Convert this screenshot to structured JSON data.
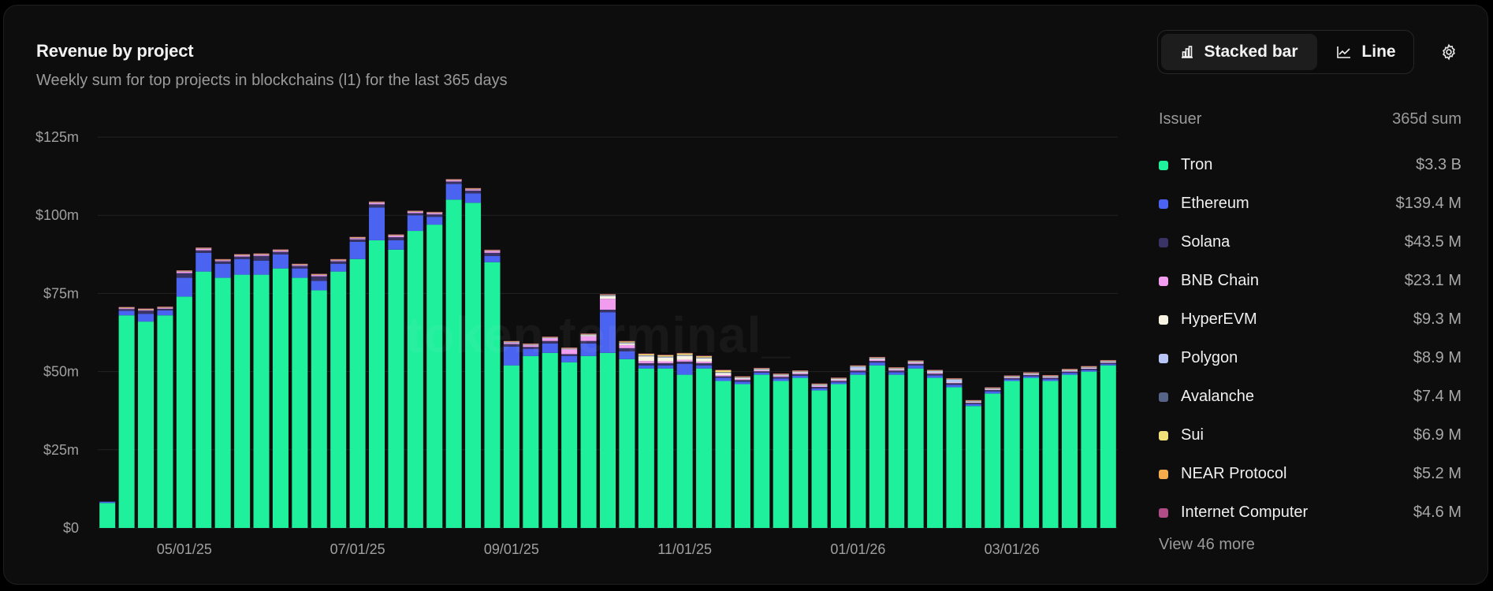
{
  "header": {
    "title": "Revenue by project",
    "subtitle": "Weekly sum for top projects in blockchains (l1) for the last 365 days"
  },
  "toggle": {
    "stacked_label": "Stacked bar",
    "line_label": "Line",
    "active": "stacked"
  },
  "watermark": "token terminal_",
  "legend": {
    "header_left": "Issuer",
    "header_right": "365d sum",
    "items": [
      {
        "name": "Tron",
        "value": "$3.3 B",
        "color": "#1ef09c"
      },
      {
        "name": "Ethereum",
        "value": "$139.4 M",
        "color": "#4a63f0"
      },
      {
        "name": "Solana",
        "value": "$43.5 M",
        "color": "#3a3466"
      },
      {
        "name": "BNB Chain",
        "value": "$23.1 M",
        "color": "#f29cf0"
      },
      {
        "name": "HyperEVM",
        "value": "$9.3 M",
        "color": "#f6f3e2"
      },
      {
        "name": "Polygon",
        "value": "$8.9 M",
        "color": "#b7c6f7"
      },
      {
        "name": "Avalanche",
        "value": "$7.4 M",
        "color": "#566488"
      },
      {
        "name": "Sui",
        "value": "$6.9 M",
        "color": "#f1df7a"
      },
      {
        "name": "NEAR Protocol",
        "value": "$5.2 M",
        "color": "#f3ab4b"
      },
      {
        "name": "Internet Computer",
        "value": "$4.6 M",
        "color": "#b04c86"
      }
    ],
    "view_more": "View 46 more"
  },
  "chart_data": {
    "type": "bar",
    "stacked": true,
    "ylim": [
      0,
      125
    ],
    "y_ticks": [
      "$0",
      "$25m",
      "$50m",
      "$75m",
      "$100m",
      "$125m"
    ],
    "x_tick_labels": [
      {
        "label": "05/01/25",
        "index": 4
      },
      {
        "label": "07/01/25",
        "index": 13
      },
      {
        "label": "09/01/25",
        "index": 21
      },
      {
        "label": "11/01/25",
        "index": 30
      },
      {
        "label": "01/01/26",
        "index": 39
      },
      {
        "label": "03/01/26",
        "index": 47
      }
    ],
    "grid": true,
    "legend_position": "right",
    "series": [
      {
        "name": "Tron",
        "color": "#1ef09c",
        "values": [
          8,
          68,
          66,
          68,
          74,
          82,
          80,
          81,
          81,
          83,
          80,
          76,
          82,
          86,
          92,
          89,
          95,
          97,
          105,
          104,
          85,
          52,
          55,
          56,
          53,
          55,
          56,
          54,
          51,
          51,
          49,
          51,
          47,
          46,
          49,
          47,
          48,
          44,
          46,
          49,
          52,
          49,
          51,
          48,
          45,
          39,
          43,
          47,
          48,
          47,
          49,
          50,
          52
        ]
      },
      {
        "name": "Ethereum",
        "color": "#4a63f0",
        "values": [
          0.4,
          1.5,
          2.5,
          1.6,
          6,
          6,
          4.5,
          5,
          4.5,
          4.5,
          3,
          3,
          2.5,
          5.5,
          10.5,
          3,
          5,
          2.5,
          5,
          3,
          2,
          6,
          2.3,
          3,
          2,
          4,
          13,
          2.5,
          1,
          1,
          3.5,
          1,
          1,
          0.8,
          0.7,
          0.8,
          0.7,
          0.6,
          0.6,
          0.8,
          0.9,
          0.8,
          1,
          0.8,
          0.8,
          0.6,
          0.7,
          0.5,
          0.5,
          0.6,
          0.6,
          0.5,
          0.4
        ]
      },
      {
        "name": "Solana",
        "color": "#3a3466",
        "values": [
          0,
          0.5,
          1,
          0.5,
          1.5,
          0.8,
          0.8,
          0.8,
          1.5,
          0.8,
          0.8,
          1.5,
          0.8,
          0.8,
          1,
          1,
          0.7,
          0.8,
          0.8,
          0.9,
          1,
          0.8,
          0.6,
          0.8,
          0.6,
          0.8,
          0.8,
          1,
          0.7,
          0.7,
          0.7,
          0.7,
          0.5,
          0.5,
          0.4,
          0.5,
          0.5,
          0.5,
          0.4,
          0.5,
          0.5,
          0.5,
          0.5,
          0.5,
          0.5,
          0.4,
          0.4,
          0.4,
          0.4,
          0.4,
          0.4,
          0.4,
          0.4
        ]
      },
      {
        "name": "BNB Chain",
        "color": "#f29cf0",
        "values": [
          0,
          0.3,
          0.3,
          0.3,
          0.5,
          0.5,
          0.3,
          0.4,
          0.4,
          0.4,
          0.3,
          0.4,
          0.3,
          0.4,
          0.5,
          0.5,
          0.4,
          0.4,
          0.4,
          0.4,
          0.6,
          0.4,
          0.5,
          0.8,
          1.5,
          1.5,
          3.5,
          1,
          0.7,
          0.6,
          0.6,
          0.5,
          0.4,
          0.3,
          0.3,
          0.3,
          0.3,
          0.3,
          0.3,
          0.3,
          0.4,
          0.3,
          0.3,
          0.3,
          0.2,
          0.2,
          0.2,
          0.2,
          0.2,
          0.2,
          0.2,
          0.2,
          0.2
        ]
      },
      {
        "name": "HyperEVM",
        "color": "#f6f3e2",
        "values": [
          0,
          0,
          0,
          0,
          0,
          0,
          0,
          0,
          0,
          0,
          0,
          0,
          0,
          0,
          0,
          0,
          0,
          0,
          0,
          0,
          0,
          0,
          0,
          0,
          0,
          0.3,
          0.8,
          0.5,
          1.5,
          1.2,
          1.2,
          1,
          0.6,
          0.3,
          0.2,
          0.2,
          0.3,
          0.2,
          0.2,
          0.2,
          0.3,
          0.2,
          0.2,
          0.2,
          0.1,
          0.1,
          0.1,
          0.1,
          0.1,
          0.1,
          0.1,
          0.1,
          0.1
        ]
      },
      {
        "name": "Polygon",
        "color": "#b7c6f7",
        "values": [
          0,
          0,
          0,
          0,
          0,
          0,
          0,
          0,
          0,
          0,
          0,
          0,
          0,
          0,
          0,
          0,
          0,
          0,
          0,
          0,
          0,
          0.2,
          0.2,
          0.2,
          0.2,
          0.2,
          0.2,
          0.2,
          0.2,
          0.2,
          0.2,
          0.2,
          0.2,
          0.2,
          0.2,
          0.2,
          0.2,
          0.2,
          0.2,
          0.8,
          0.2,
          0.2,
          0.2,
          0.4,
          0.9,
          0.2,
          0.2,
          0.2,
          0.2,
          0.2,
          0.2,
          0.2,
          0.2
        ]
      },
      {
        "name": "Avalanche",
        "color": "#566488",
        "values": [
          0,
          0.1,
          0.1,
          0.1,
          0.1,
          0.1,
          0.1,
          0.1,
          0.1,
          0.1,
          0.1,
          0.1,
          0.1,
          0.1,
          0.1,
          0.1,
          0.1,
          0.1,
          0.1,
          0.1,
          0.1,
          0.1,
          0.1,
          0.1,
          0.1,
          0.1,
          0.2,
          0.1,
          0.1,
          0.1,
          0.1,
          0.1,
          0.1,
          0.1,
          0.1,
          0.1,
          0.1,
          0.1,
          0.1,
          0.1,
          0.1,
          0.1,
          0.1,
          0.1,
          0.1,
          0.1,
          0.1,
          0.1,
          0.1,
          0.1,
          0.1,
          0.1,
          0.1
        ]
      },
      {
        "name": "Sui",
        "color": "#f1df7a",
        "values": [
          0,
          0.1,
          0.1,
          0.1,
          0.1,
          0.1,
          0.1,
          0.1,
          0.1,
          0.1,
          0.1,
          0.1,
          0.1,
          0.1,
          0.1,
          0.1,
          0.1,
          0.1,
          0.1,
          0.1,
          0.1,
          0.1,
          0.1,
          0.1,
          0.1,
          0.1,
          0.1,
          0.3,
          0.4,
          0.4,
          0.5,
          0.4,
          0.6,
          0.1,
          0.1,
          0.1,
          0.1,
          0.1,
          0.1,
          0.1,
          0.1,
          0.1,
          0.1,
          0.1,
          0.1,
          0.1,
          0.1,
          0.1,
          0.1,
          0.1,
          0.1,
          0.1,
          0.1
        ]
      },
      {
        "name": "NEAR Protocol",
        "color": "#f3ab4b",
        "values": [
          0,
          0.1,
          0.1,
          0.1,
          0.1,
          0.1,
          0.1,
          0.1,
          0.1,
          0.1,
          0.1,
          0.1,
          0.1,
          0.1,
          0.1,
          0.1,
          0.1,
          0.1,
          0.1,
          0.1,
          0.1,
          0.1,
          0.1,
          0.1,
          0.1,
          0.1,
          0.1,
          0.1,
          0.1,
          0.1,
          0.1,
          0.1,
          0.1,
          0.1,
          0.1,
          0.1,
          0.1,
          0.1,
          0.1,
          0.1,
          0.1,
          0.1,
          0.1,
          0.1,
          0.1,
          0.1,
          0.1,
          0.1,
          0.1,
          0.1,
          0.1,
          0.1,
          0.1
        ]
      },
      {
        "name": "Internet Computer",
        "color": "#b04c86",
        "values": [
          0,
          0.1,
          0.1,
          0.1,
          0.1,
          0.1,
          0.1,
          0.1,
          0.1,
          0.1,
          0.1,
          0.1,
          0.1,
          0.1,
          0.1,
          0.1,
          0.1,
          0.1,
          0.1,
          0.1,
          0.1,
          0.1,
          0.1,
          0.1,
          0.1,
          0.1,
          0.1,
          0.1,
          0.1,
          0.1,
          0.1,
          0.1,
          0.1,
          0.1,
          0.1,
          0.1,
          0.1,
          0.1,
          0.1,
          0.1,
          0.1,
          0.1,
          0.1,
          0.1,
          0.1,
          0.1,
          0.1,
          0.1,
          0.1,
          0.1,
          0.1,
          0.1,
          0.1
        ]
      }
    ]
  }
}
